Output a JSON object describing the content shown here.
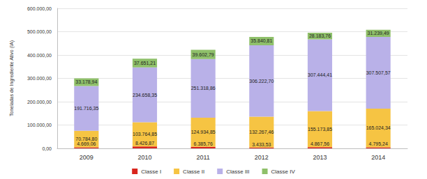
{
  "chart_data": {
    "type": "bar",
    "stacked": true,
    "data_labels": true,
    "grid": true,
    "legend": "bottom",
    "y_label": "Toneladas de Ingrediente Ativo (IA)",
    "categories": [
      "2009",
      "2010",
      "2011",
      "2012",
      "2013",
      "2014"
    ],
    "ylim": [
      0,
      600000
    ],
    "yticks": [
      {
        "value": 0,
        "label": "0,00"
      },
      {
        "value": 100000,
        "label": "100.000,00"
      },
      {
        "value": 200000,
        "label": "200.000,00"
      },
      {
        "value": 300000,
        "label": "300.000,00"
      },
      {
        "value": 400000,
        "label": "400.000,00"
      },
      {
        "value": 500000,
        "label": "500.000,00"
      },
      {
        "value": 600000,
        "label": "600.000,00"
      }
    ],
    "series": [
      {
        "name": "Classe I",
        "color": "#d9251d",
        "values": [
          4669.06,
          8426.87,
          6385.76,
          3433.53,
          4867.56,
          4795.24
        ],
        "value_labels": [
          "4.669,06",
          "8.426,87",
          "6.385,76",
          "3.433,53",
          "4.867,56",
          "4.795,24"
        ]
      },
      {
        "name": "Classe II",
        "color": "#f6c443",
        "values": [
          70784.8,
          103764.85,
          124934.85,
          132267.46,
          155173.85,
          165024.34
        ],
        "value_labels": [
          "70.784,80",
          "103.764,85",
          "124.934,85",
          "132.267,46",
          "155.173,85",
          "165.024,34"
        ]
      },
      {
        "name": "Classe III",
        "color": "#b9b1e8",
        "values": [
          191716.35,
          234658.35,
          251318.86,
          306222.7,
          307444.41,
          307507.57
        ],
        "value_labels": [
          "191.716,35",
          "234.658,35",
          "251.318,86",
          "306.222,70",
          "307.444,41",
          "307.507,57"
        ]
      },
      {
        "name": "Classe IV",
        "color": "#8fc06a",
        "values": [
          33178.94,
          37651.21,
          39602.79,
          35840.81,
          28183.76,
          31239.49
        ],
        "value_labels": [
          "33.178,94",
          "37.651,21",
          "39.602,79",
          "35.840,81",
          "28.183,76",
          "31.239,49"
        ]
      }
    ]
  }
}
